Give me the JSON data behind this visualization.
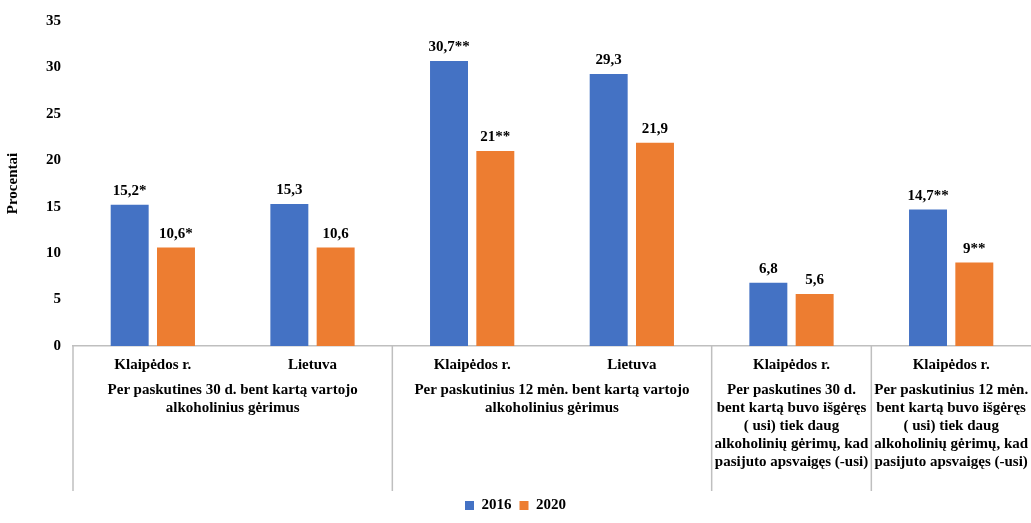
{
  "chart_data": {
    "type": "bar",
    "ylabel": "Procentai",
    "categories": [
      "Klaipėdos r.",
      "Lietuva",
      "Klaipėdos r.",
      "Lietuva",
      "Klaipėdos r.",
      "Klaipėdos r."
    ],
    "series": [
      {
        "name": "2016",
        "color": "#4472c4",
        "values": [
          15.2,
          15.3,
          30.7,
          29.3,
          6.8,
          14.7
        ],
        "value_labels": [
          "15,2*",
          "15,3",
          "30,7**",
          "29,3",
          "6,8",
          "14,7**"
        ]
      },
      {
        "name": "2020",
        "color": "#ed7d31",
        "values": [
          10.6,
          10.6,
          21,
          21.9,
          5.6,
          9
        ],
        "value_labels": [
          "10,6*",
          "10,6",
          "21**",
          "21,9",
          "5,6",
          "9**"
        ]
      }
    ],
    "ylim": [
      0,
      35
    ],
    "yticks": [
      0,
      5,
      10,
      15,
      20,
      25,
      30,
      35
    ],
    "grid": false,
    "legend": "bottom",
    "annotations": [
      "Per paskutines 30 d. bent kartą vartojo alkoholinius gėrimus",
      "Per paskutinius 12 mėn. bent kartą vartojo alkoholinius gėrimus",
      "Per paskutines 30 d. bent kartą buvo išgėręs ( usi) tiek daug alkoholinių gėrimų, kad pasijuto apsvaigęs (-usi)",
      "Per paskutinius 12 mėn. bent kartą buvo išgėręs ( usi) tiek daug alkoholinių gėrimų, kad pasijuto apsvaigęs (-usi)"
    ]
  }
}
